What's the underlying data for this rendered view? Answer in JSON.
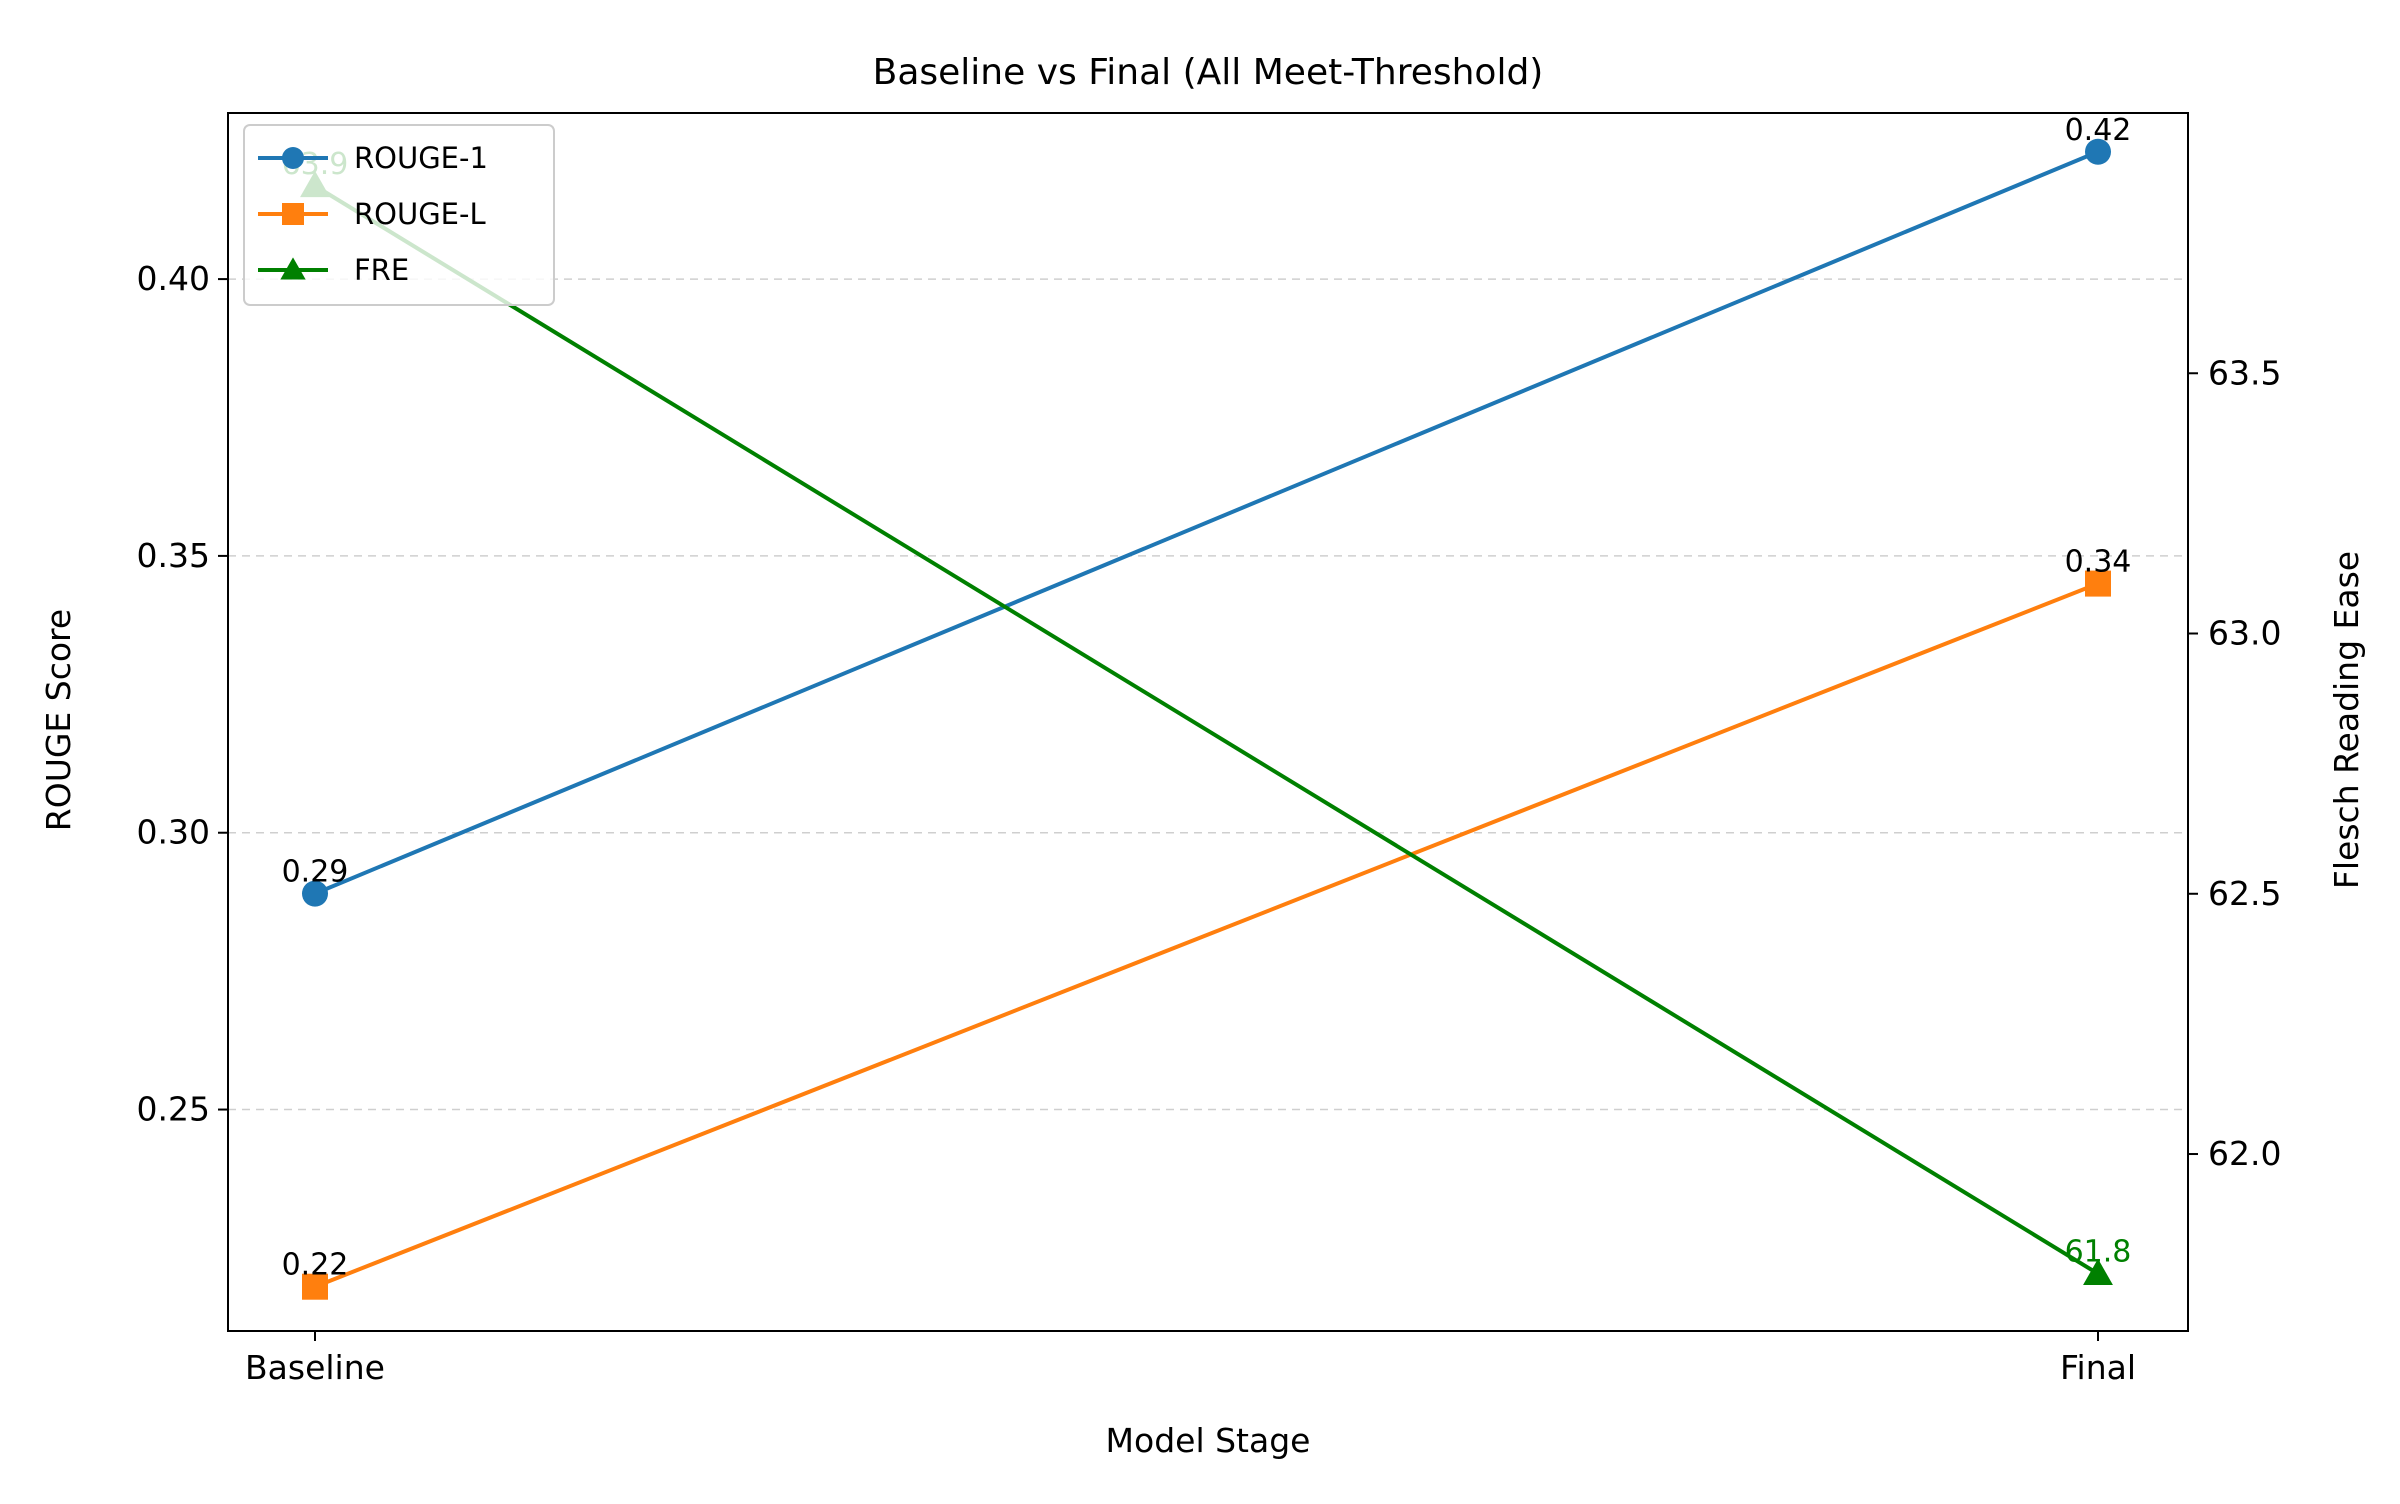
{
  "chart_data": {
    "type": "line",
    "title": "Baseline vs Final (All Meet-Threshold)",
    "xlabel": "Model Stage",
    "ylabel": "ROUGE Score",
    "y2label": "Flesch Reading Ease",
    "categories": [
      "Baseline",
      "Final"
    ],
    "ylim": [
      0.21,
      0.43
    ],
    "y2lim": [
      61.66,
      64.0
    ],
    "yticks": [
      0.25,
      0.3,
      0.35,
      0.4
    ],
    "y2ticks": [
      62.0,
      62.5,
      63.0,
      63.5
    ],
    "ytick_labels": [
      "0.25",
      "0.30",
      "0.35",
      "0.40"
    ],
    "y2tick_labels": [
      "62.0",
      "62.5",
      "63.0",
      "63.5"
    ],
    "grid": "y-dashed",
    "legend_position": "top-left",
    "series": [
      {
        "name": "ROUGE-1",
        "axis": "left",
        "marker": "circle",
        "color": "#1f77b4",
        "values": [
          0.289,
          0.423
        ],
        "labels": [
          "0.29",
          "0.42"
        ]
      },
      {
        "name": "ROUGE-L",
        "axis": "left",
        "marker": "square",
        "color": "#ff7f0e",
        "values": [
          0.218,
          0.345
        ],
        "labels": [
          "0.22",
          "0.34"
        ]
      },
      {
        "name": "FRE",
        "axis": "right",
        "marker": "triangle",
        "color": "#008000",
        "values": [
          63.86,
          61.77
        ],
        "labels": [
          "63.9",
          "61.8"
        ]
      }
    ]
  }
}
